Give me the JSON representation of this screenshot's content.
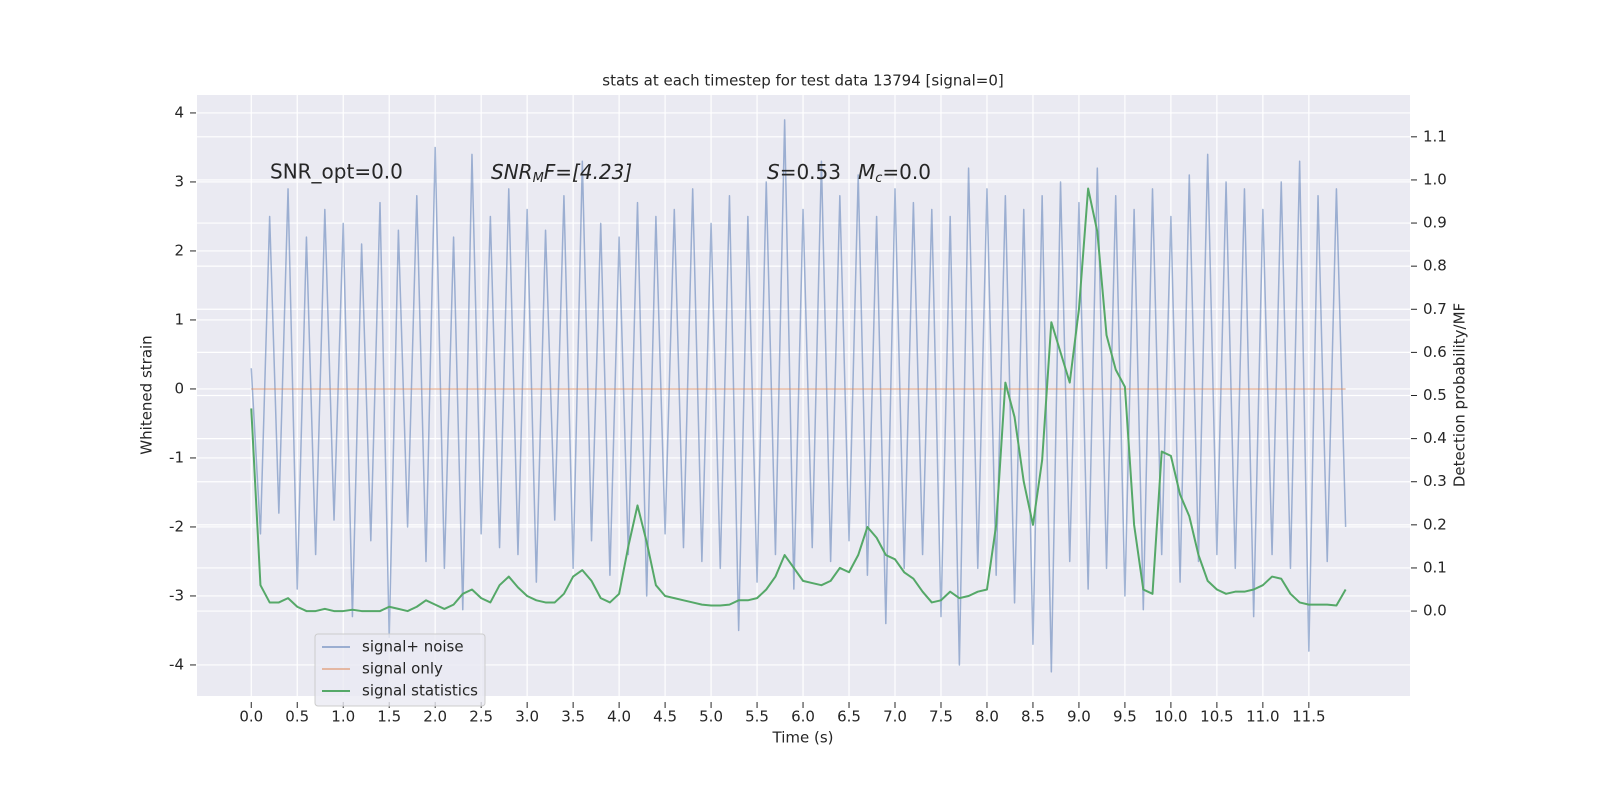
{
  "chart_data": {
    "type": "line",
    "title": "stats at each timestep for test data 13794 [signal=0]",
    "x_label": "Time (s)",
    "y_label": "Whitened strain",
    "y2_label": "Detection probability/MF",
    "annotations": {
      "snr_opt": "SNR_opt=0.0",
      "snr_mf": [
        "SNR",
        "M",
        "F=[4.23]"
      ],
      "stats": [
        "S",
        "=0.53",
        "M",
        "c",
        "=0.0"
      ]
    },
    "grid": true,
    "legend": "lower left",
    "xlim": [
      -0.59,
      12.6
    ],
    "ylim": [
      -4.45,
      4.26
    ],
    "y2lim": [
      -0.197,
      1.197
    ],
    "xticks": [
      {
        "value": 0,
        "label": "0.0"
      },
      0.5,
      {
        "value": 1,
        "label": "1.0"
      },
      1.5,
      {
        "value": 2,
        "label": "2.0"
      },
      2.5,
      {
        "value": 3,
        "label": "3.0"
      },
      3.5,
      {
        "value": 4,
        "label": "4.0"
      },
      4.5,
      {
        "value": 5,
        "label": "5.0"
      },
      5.5,
      {
        "value": 6,
        "label": "6.0"
      },
      6.5,
      {
        "value": 7,
        "label": "7.0"
      },
      7.5,
      {
        "value": 8,
        "label": "8.0"
      },
      8.5,
      {
        "value": 9,
        "label": "9.0"
      },
      9.5,
      {
        "value": 10,
        "label": "10.0"
      },
      10.5,
      {
        "value": 11,
        "label": "11.0"
      },
      11.5
    ],
    "yticks": [
      -4,
      -3,
      -2,
      -1,
      0,
      1,
      2,
      3,
      4
    ],
    "y2ticks": [
      {
        "value": 0,
        "label": "0.0"
      },
      0.1,
      0.2,
      0.3,
      0.4,
      0.5,
      0.6,
      0.7,
      0.8,
      0.9,
      {
        "value": 1,
        "label": "1.0"
      },
      1.1
    ],
    "x": [
      0,
      0.1,
      0.2,
      0.3,
      0.4,
      0.5,
      0.6,
      0.7,
      0.8,
      0.9,
      1,
      1.1,
      1.2,
      1.3,
      1.4,
      1.5,
      1.6,
      1.7,
      1.8,
      1.9,
      2,
      2.1,
      2.2,
      2.3,
      2.4,
      2.5,
      2.6,
      2.7,
      2.8,
      2.9,
      3,
      3.1,
      3.2,
      3.3,
      3.4,
      3.5,
      3.6,
      3.7,
      3.8,
      3.9,
      4,
      4.1,
      4.2,
      4.3,
      4.4,
      4.5,
      4.6,
      4.7,
      4.8,
      4.9,
      5,
      5.1,
      5.2,
      5.3,
      5.4,
      5.5,
      5.6,
      5.7,
      5.8,
      5.9,
      6,
      6.1,
      6.2,
      6.3,
      6.4,
      6.5,
      6.6,
      6.7,
      6.8,
      6.9,
      7,
      7.1,
      7.2,
      7.3,
      7.4,
      7.5,
      7.6,
      7.7,
      7.8,
      7.9,
      8,
      8.1,
      8.2,
      8.3,
      8.4,
      8.5,
      8.6,
      8.7,
      8.8,
      8.9,
      9,
      9.1,
      9.2,
      9.3,
      9.4,
      9.5,
      9.6,
      9.7,
      9.8,
      9.9,
      10,
      10.1,
      10.2,
      10.3,
      10.4,
      10.5,
      10.6,
      10.7,
      10.8,
      10.9,
      11,
      11.1,
      11.2,
      11.3,
      11.4,
      11.5,
      11.6,
      11.7,
      11.8,
      11.9
    ],
    "series": [
      {
        "name": "signal+ noise",
        "color": "#4c72b0",
        "values": [
          0.3,
          -2.1,
          2.5,
          -1.8,
          2.9,
          -2.9,
          2.2,
          -2.4,
          2.6,
          -1.9,
          2.4,
          -3.3,
          2.1,
          -2.2,
          2.7,
          -3.6,
          2.3,
          -2.0,
          2.8,
          -2.5,
          3.5,
          -2.6,
          2.2,
          -3.2,
          3.4,
          -2.1,
          2.5,
          -2.3,
          2.9,
          -2.4,
          2.6,
          -2.8,
          2.3,
          -1.9,
          2.8,
          -2.6,
          3.3,
          -2.2,
          2.4,
          -2.7,
          2.2,
          -2.4,
          2.7,
          -3.0,
          2.5,
          -2.1,
          2.6,
          -2.3,
          2.9,
          -2.5,
          2.4,
          -2.6,
          2.8,
          -3.5,
          2.5,
          -2.8,
          3.0,
          -2.4,
          3.9,
          -2.9,
          2.6,
          -2.3,
          3.3,
          -2.5,
          2.8,
          -2.2,
          3.1,
          -2.7,
          2.5,
          -3.4,
          2.9,
          -2.6,
          2.7,
          -2.4,
          2.6,
          -3.3,
          2.5,
          -4.0,
          3.2,
          -2.6,
          2.9,
          -2.7,
          2.8,
          -3.1,
          2.6,
          -3.7,
          2.8,
          -4.1,
          3.0,
          -2.5,
          2.7,
          -2.9,
          3.2,
          -2.6,
          2.8,
          -3.0,
          2.6,
          -3.2,
          2.9,
          -2.4,
          2.5,
          -2.8,
          3.1,
          -2.5,
          3.4,
          -2.4,
          3.0,
          -2.6,
          2.9,
          -3.3,
          2.6,
          -2.4,
          3.0,
          -2.6,
          3.3,
          -3.8,
          2.8,
          -2.5,
          2.9,
          -2.0
        ]
      },
      {
        "name": "signal only",
        "color": "#dd8452",
        "values": [
          0,
          0,
          0,
          0,
          0,
          0,
          0,
          0,
          0,
          0,
          0,
          0,
          0,
          0,
          0,
          0,
          0,
          0,
          0,
          0,
          0,
          0,
          0,
          0,
          0,
          0,
          0,
          0,
          0,
          0,
          0,
          0,
          0,
          0,
          0,
          0,
          0,
          0,
          0,
          0,
          0,
          0,
          0,
          0,
          0,
          0,
          0,
          0,
          0,
          0,
          0,
          0,
          0,
          0,
          0,
          0,
          0,
          0,
          0,
          0,
          0,
          0,
          0,
          0,
          0,
          0,
          0,
          0,
          0,
          0,
          0,
          0,
          0,
          0,
          0,
          0,
          0,
          0,
          0,
          0,
          0,
          0,
          0,
          0,
          0,
          0,
          0,
          0,
          0,
          0,
          0,
          0,
          0,
          0,
          0,
          0,
          0,
          0,
          0,
          0,
          0,
          0,
          0,
          0,
          0,
          0,
          0,
          0,
          0,
          0,
          0,
          0,
          0,
          0,
          0,
          0,
          0,
          0,
          0,
          0
        ]
      },
      {
        "name": "signal statistics",
        "color": "#55a868",
        "axis": "y2",
        "values": [
          0.47,
          0.06,
          0.02,
          0.02,
          0.03,
          0.01,
          0,
          0,
          0.005,
          0,
          0,
          0.003,
          0,
          0,
          0,
          0.01,
          0.005,
          0,
          0.01,
          0.025,
          0.015,
          0.005,
          0.015,
          0.04,
          0.05,
          0.03,
          0.02,
          0.06,
          0.08,
          0.055,
          0.035,
          0.025,
          0.02,
          0.02,
          0.04,
          0.08,
          0.095,
          0.07,
          0.03,
          0.02,
          0.04,
          0.15,
          0.245,
          0.16,
          0.06,
          0.035,
          0.03,
          0.025,
          0.02,
          0.015,
          0.013,
          0.013,
          0.015,
          0.025,
          0.025,
          0.03,
          0.05,
          0.08,
          0.13,
          0.1,
          0.07,
          0.065,
          0.06,
          0.07,
          0.1,
          0.09,
          0.13,
          0.195,
          0.17,
          0.13,
          0.12,
          0.09,
          0.075,
          0.045,
          0.02,
          0.025,
          0.045,
          0.03,
          0.035,
          0.045,
          0.05,
          0.2,
          0.53,
          0.45,
          0.3,
          0.2,
          0.35,
          0.67,
          0.6,
          0.53,
          0.7,
          0.98,
          0.88,
          0.64,
          0.56,
          0.52,
          0.2,
          0.05,
          0.04,
          0.37,
          0.36,
          0.27,
          0.22,
          0.13,
          0.07,
          0.05,
          0.04,
          0.045,
          0.045,
          0.05,
          0.06,
          0.08,
          0.075,
          0.04,
          0.02,
          0.015,
          0.015,
          0.015,
          0.013,
          0.05
        ]
      }
    ]
  }
}
